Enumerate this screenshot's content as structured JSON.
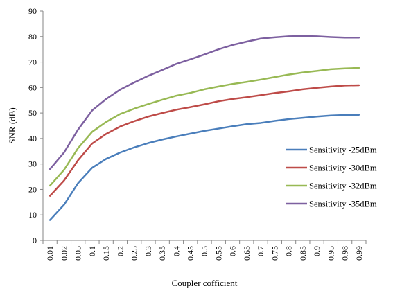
{
  "chart_data": {
    "type": "line",
    "title": "",
    "xlabel": "Coupler cofficient",
    "ylabel": "SNR (dB)",
    "ylim": [
      0,
      90
    ],
    "yticks": [
      0,
      10,
      20,
      30,
      40,
      50,
      60,
      70,
      80,
      90
    ],
    "grid": false,
    "legend_position": "right",
    "categories": [
      "0.01",
      "0.02",
      "0.05",
      "0.1",
      "0.15",
      "0.2",
      "0.25",
      "0.3",
      "0.35",
      "0.4",
      "0.45",
      "0.5",
      "0.55",
      "0.6",
      "0.65",
      "0.7",
      "0.75",
      "0.8",
      "0.85",
      "0.9",
      "0.95",
      "0.98",
      "0.99"
    ],
    "series": [
      {
        "name": "Sensitivity -25dBm",
        "color": "#4a7ebb",
        "values": [
          8,
          14,
          22.5,
          28.5,
          32,
          34.5,
          36.5,
          38.2,
          39.6,
          40.8,
          41.9,
          43,
          43.9,
          44.8,
          45.6,
          46.1,
          46.9,
          47.6,
          48.1,
          48.6,
          49,
          49.2,
          49.3
        ]
      },
      {
        "name": "Sensitivity -30dBm",
        "color": "#be4b48",
        "values": [
          17.5,
          23.5,
          31.5,
          38,
          41.8,
          44.7,
          46.8,
          48.6,
          50,
          51.3,
          52.3,
          53.4,
          54.6,
          55.5,
          56.2,
          57,
          57.8,
          58.5,
          59.3,
          59.9,
          60.4,
          60.8,
          60.9
        ]
      },
      {
        "name": "Sensitivity -32dBm",
        "color": "#98b954",
        "values": [
          21.5,
          27.7,
          36.2,
          42.6,
          46.5,
          49.6,
          51.7,
          53.5,
          55.2,
          56.8,
          57.9,
          59.3,
          60.4,
          61.4,
          62.2,
          63.1,
          64.1,
          65.1,
          65.9,
          66.5,
          67.2,
          67.5,
          67.7
        ]
      },
      {
        "name": "Sensitivity -35dBm",
        "color": "#7d60a0",
        "values": [
          28,
          34.5,
          43.5,
          51,
          55.5,
          59.2,
          62,
          64.6,
          66.9,
          69.3,
          71.1,
          73,
          75,
          76.7,
          78,
          79.2,
          79.7,
          80.1,
          80.2,
          80.1,
          79.8,
          79.6,
          79.6
        ]
      }
    ]
  }
}
